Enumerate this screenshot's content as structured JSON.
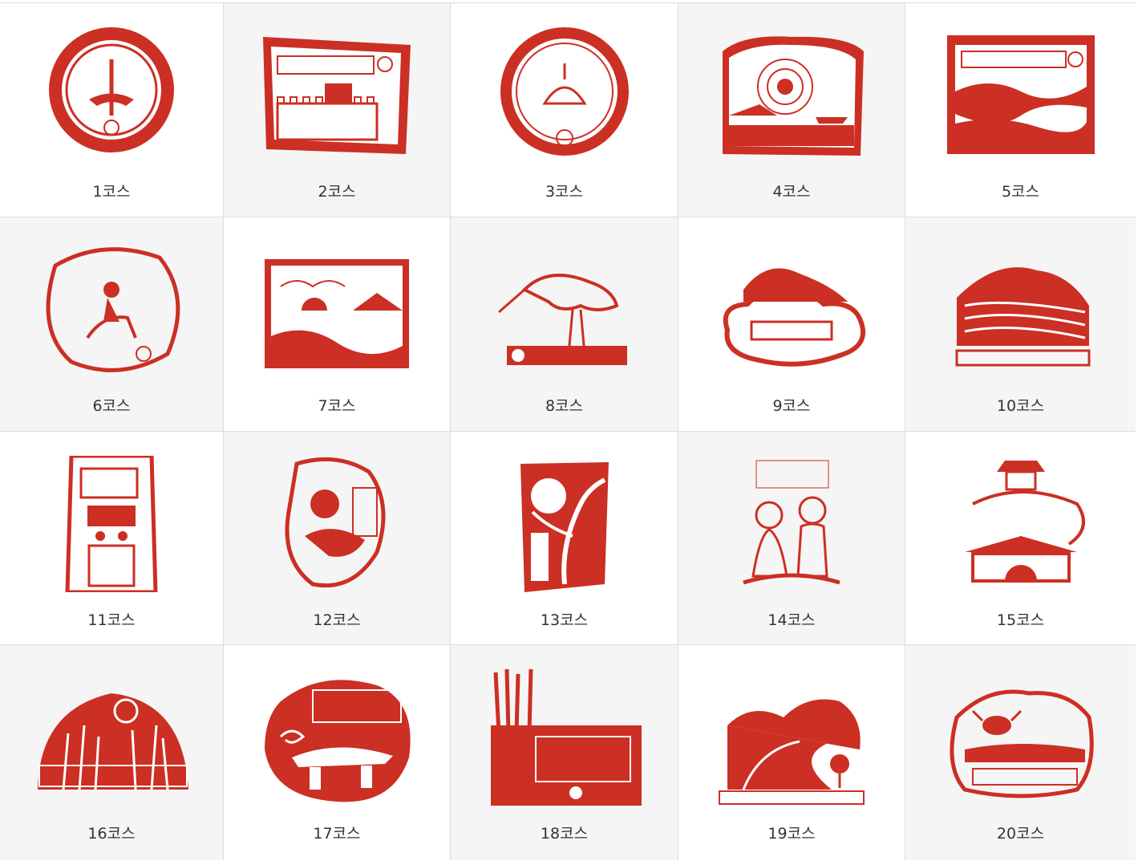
{
  "accent_color": "#cc2f23",
  "courses": [
    {
      "label": "1코스",
      "icon": "round-seal-stamp-icon"
    },
    {
      "label": "2코스",
      "icon": "fortress-wall-stamp-icon"
    },
    {
      "label": "3코스",
      "icon": "round-tomb-stamp-icon"
    },
    {
      "label": "4코스",
      "icon": "sunset-sea-stamp-icon"
    },
    {
      "label": "5코스",
      "icon": "mountain-pass-stamp-icon"
    },
    {
      "label": "6코스",
      "icon": "traveler-donkey-stamp-icon"
    },
    {
      "label": "7코스",
      "icon": "sunset-coast-stamp-icon"
    },
    {
      "label": "8코스",
      "icon": "crane-bird-stamp-icon"
    },
    {
      "label": "9코스",
      "icon": "cloud-island-stamp-icon"
    },
    {
      "label": "10코스",
      "icon": "terraced-fields-stamp-icon"
    },
    {
      "label": "11코스",
      "icon": "stone-guardian-stamp-icon"
    },
    {
      "label": "12코스",
      "icon": "general-face-stamp-icon"
    },
    {
      "label": "13코스",
      "icon": "old-tree-stamp-icon"
    },
    {
      "label": "14코스",
      "icon": "couple-stamp-icon"
    },
    {
      "label": "15코스",
      "icon": "palace-gate-stamp-icon"
    },
    {
      "label": "16코스",
      "icon": "golden-field-stamp-icon"
    },
    {
      "label": "17코스",
      "icon": "dolmen-stamp-icon"
    },
    {
      "label": "18코스",
      "icon": "reeds-stamp-icon"
    },
    {
      "label": "19코스",
      "icon": "coastal-road-stamp-icon"
    },
    {
      "label": "20코스",
      "icon": "mudflat-crab-stamp-icon"
    }
  ]
}
